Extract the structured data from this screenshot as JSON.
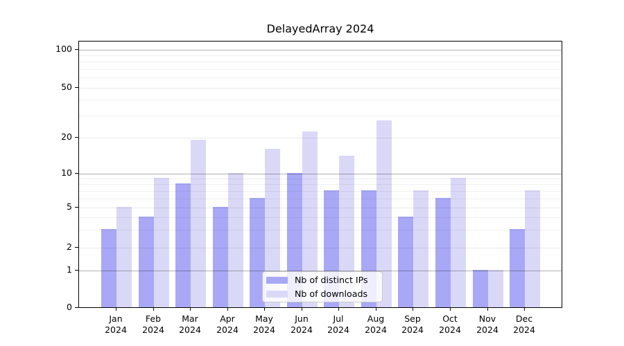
{
  "figure": {
    "background": "#ffffff",
    "text_color": "#000000"
  },
  "chart_data": {
    "type": "bar",
    "title": "DelayedArray 2024",
    "categories": [
      "Jan",
      "Feb",
      "Mar",
      "Apr",
      "May",
      "Jun",
      "Jul",
      "Aug",
      "Sep",
      "Oct",
      "Nov",
      "Dec"
    ],
    "category_year": "2024",
    "series": [
      {
        "name": "Nb of distinct IPs",
        "color": "#a8a8f6",
        "values": [
          3,
          4,
          8,
          5,
          6,
          10,
          7,
          7,
          4,
          6,
          1,
          3
        ]
      },
      {
        "name": "Nb of downloads",
        "color": "#d9d9f7",
        "values": [
          5,
          9,
          19,
          10,
          16,
          22,
          14,
          27,
          7,
          9,
          1,
          7
        ]
      }
    ],
    "xlabel": "",
    "ylabel": "",
    "y_axis": {
      "scale": "pseudo-log",
      "labeled_ticks": [
        0,
        1,
        2,
        5,
        10,
        20,
        50,
        100
      ],
      "major_grid_ticks": [
        1,
        10,
        100
      ],
      "minor_grid_ticks": [
        3,
        4,
        6,
        7,
        8,
        9,
        30,
        40,
        60,
        70,
        80,
        90
      ],
      "range": [
        0,
        100
      ]
    },
    "grid": true,
    "legend_position": "inside-bottom-center"
  }
}
